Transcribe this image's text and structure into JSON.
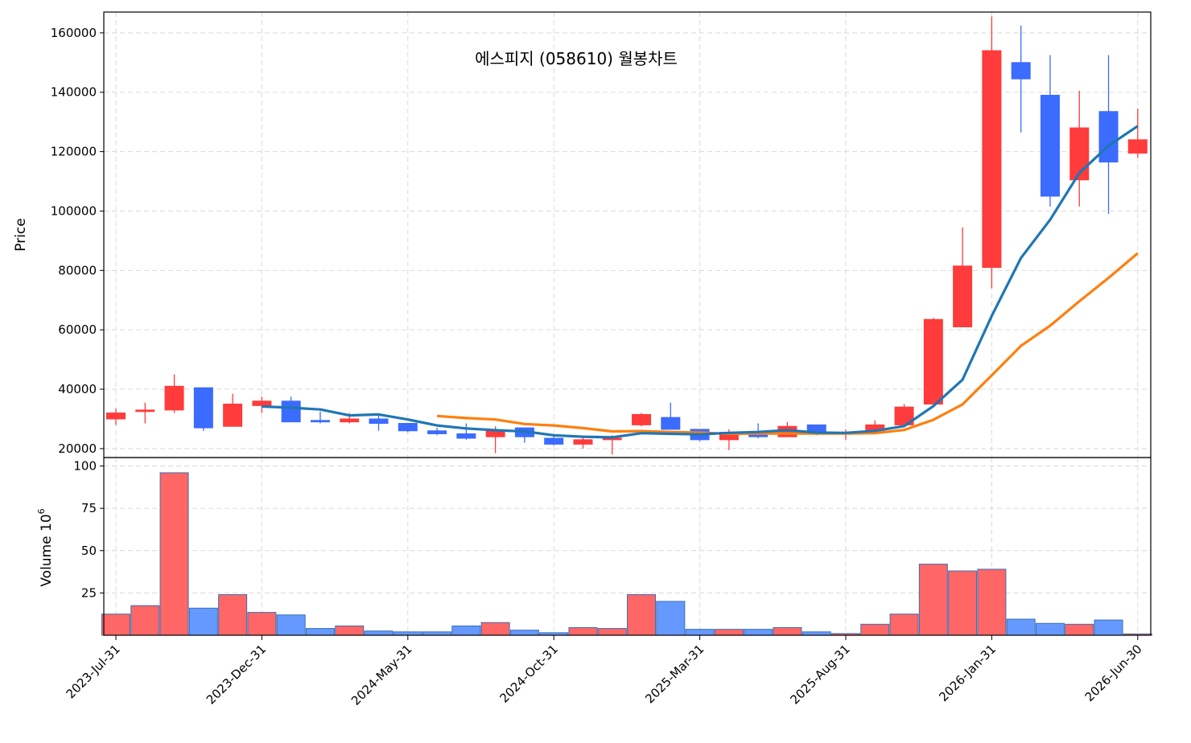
{
  "chart_data": {
    "type": "candlestick",
    "title": "에스피지 (058610) 월봉차트",
    "price_axis": {
      "label": "Price",
      "ylim": [
        17000,
        167000
      ],
      "ticks": [
        20000,
        40000,
        60000,
        80000,
        100000,
        120000,
        140000,
        160000
      ]
    },
    "volume_axis": {
      "label": "Volume",
      "exponent_label": "10",
      "exponent": "6",
      "ylim": [
        0,
        105
      ],
      "ticks": [
        25,
        50,
        75,
        100
      ]
    },
    "x_tick_labels": [
      "2023-Jul-31",
      "2023-Dec-31",
      "2024-May-31",
      "2024-Oct-31",
      "2025-Mar-31",
      "2025-Aug-31",
      "2026-Jan-31",
      "2026-Jun-30"
    ],
    "x_tick_index": [
      0,
      5,
      10,
      15,
      20,
      25,
      30,
      35
    ],
    "grid": true,
    "colors": {
      "up": "#ff3b3b",
      "down": "#3b6bff",
      "up_volume": "#ff6666",
      "down_volume": "#6699ff",
      "ma_short": "#1f77b4",
      "ma_long": "#ff7f0e"
    },
    "candles": [
      {
        "o": 30000,
        "h": 33500,
        "l": 28000,
        "c": 32000,
        "v": 12.5
      },
      {
        "o": 32500,
        "h": 35500,
        "l": 28500,
        "c": 33000,
        "v": 17.5
      },
      {
        "o": 33000,
        "h": 45000,
        "l": 32000,
        "c": 41000,
        "v": 96
      },
      {
        "o": 40500,
        "h": 40500,
        "l": 26000,
        "c": 27000,
        "v": 16
      },
      {
        "o": 27500,
        "h": 38500,
        "l": 27500,
        "c": 35000,
        "v": 24
      },
      {
        "o": 34500,
        "h": 37500,
        "l": 32000,
        "c": 36000,
        "v": 13.5
      },
      {
        "o": 36000,
        "h": 37500,
        "l": 29000,
        "c": 29000,
        "v": 12
      },
      {
        "o": 29500,
        "h": 32500,
        "l": 28500,
        "c": 29000,
        "v": 4
      },
      {
        "o": 29000,
        "h": 32000,
        "l": 28500,
        "c": 30000,
        "v": 5.5
      },
      {
        "o": 30000,
        "h": 31500,
        "l": 26000,
        "c": 28500,
        "v": 2.5
      },
      {
        "o": 28500,
        "h": 28500,
        "l": 25500,
        "c": 26000,
        "v": 2
      },
      {
        "o": 26000,
        "h": 27000,
        "l": 24500,
        "c": 25000,
        "v": 2
      },
      {
        "o": 25000,
        "h": 28500,
        "l": 23000,
        "c": 23500,
        "v": 5.5
      },
      {
        "o": 24000,
        "h": 27500,
        "l": 18500,
        "c": 26000,
        "v": 7.5
      },
      {
        "o": 27000,
        "h": 27000,
        "l": 22000,
        "c": 24000,
        "v": 3
      },
      {
        "o": 23500,
        "h": 24500,
        "l": 21000,
        "c": 21500,
        "v": 1.5
      },
      {
        "o": 21500,
        "h": 24000,
        "l": 20000,
        "c": 23000,
        "v": 4.5
      },
      {
        "o": 23000,
        "h": 24500,
        "l": 18000,
        "c": 23500,
        "v": 4
      },
      {
        "o": 28000,
        "h": 32000,
        "l": 27500,
        "c": 31500,
        "v": 24
      },
      {
        "o": 30500,
        "h": 35500,
        "l": 26500,
        "c": 26500,
        "v": 20
      },
      {
        "o": 26500,
        "h": 26500,
        "l": 22500,
        "c": 23000,
        "v": 3.5
      },
      {
        "o": 23000,
        "h": 26500,
        "l": 19500,
        "c": 25500,
        "v": 3.5
      },
      {
        "o": 25500,
        "h": 28500,
        "l": 23500,
        "c": 24000,
        "v": 3.5
      },
      {
        "o": 24000,
        "h": 29000,
        "l": 24000,
        "c": 27500,
        "v": 4.5
      },
      {
        "o": 28000,
        "h": 28000,
        "l": 24500,
        "c": 25500,
        "v": 2
      },
      {
        "o": 25000,
        "h": 26500,
        "l": 23000,
        "c": 25500,
        "v": 1
      },
      {
        "o": 26000,
        "h": 29500,
        "l": 25500,
        "c": 28000,
        "v": 6.5
      },
      {
        "o": 28000,
        "h": 35000,
        "l": 27500,
        "c": 34000,
        "v": 12.5
      },
      {
        "o": 35000,
        "h": 64000,
        "l": 35000,
        "c": 63500,
        "v": 42
      },
      {
        "o": 61000,
        "h": 94500,
        "l": 61000,
        "c": 81500,
        "v": 38
      },
      {
        "o": 81000,
        "h": 165500,
        "l": 74000,
        "c": 154000,
        "v": 39
      },
      {
        "o": 150000,
        "h": 162500,
        "l": 126500,
        "c": 144500,
        "v": 9.5
      },
      {
        "o": 139000,
        "h": 152500,
        "l": 101500,
        "c": 105000,
        "v": 7
      },
      {
        "o": 110500,
        "h": 140500,
        "l": 101500,
        "c": 128000,
        "v": 6.5
      },
      {
        "o": 133500,
        "h": 152500,
        "l": 99000,
        "c": 116500,
        "v": 9
      },
      {
        "o": 119500,
        "h": 134500,
        "l": 118000,
        "c": 124000,
        "v": 0.8
      }
    ],
    "ma_short": [
      null,
      null,
      null,
      null,
      null,
      34200,
      33800,
      33200,
      31200,
      31500,
      29800,
      27800,
      26800,
      26200,
      25800,
      24500,
      24000,
      23800,
      25200,
      25000,
      24800,
      25300,
      25600,
      26200,
      25400,
      25300,
      26000,
      27600,
      34300,
      43200,
      64700,
      84200,
      97100,
      112800,
      122000,
      128600
    ],
    "ma_long": [
      null,
      null,
      null,
      null,
      null,
      null,
      null,
      null,
      null,
      null,
      null,
      31000,
      30300,
      29800,
      28300,
      27800,
      26900,
      25800,
      25900,
      25600,
      25400,
      25000,
      25100,
      25100,
      25100,
      25100,
      25200,
      26300,
      29700,
      34900,
      44700,
      54600,
      61400,
      69600,
      77500,
      85800
    ]
  }
}
